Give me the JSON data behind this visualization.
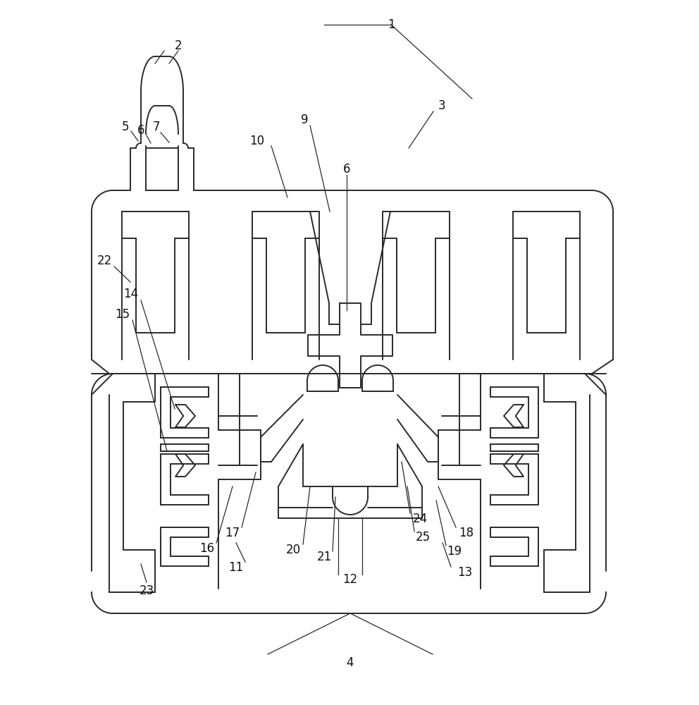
{
  "bg_color": "#ffffff",
  "line_color": "#2a2a2a",
  "line_width": 1.4,
  "ann_color": "#2a2a2a",
  "ann_lw": 0.9,
  "label_fontsize": 12
}
